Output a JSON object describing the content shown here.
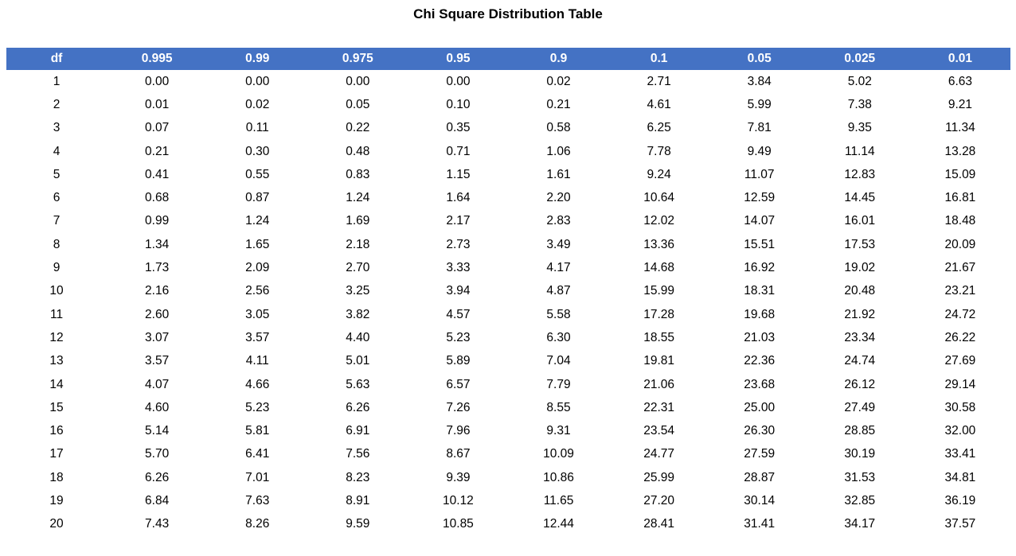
{
  "title": "Chi Square Distribution Table",
  "colors": {
    "header_bg": "#4472C4",
    "header_text": "#FFFFFF",
    "body_text": "#000000",
    "page_bg": "#FFFFFF"
  },
  "table": {
    "columns": [
      "df",
      "0.995",
      "0.99",
      "0.975",
      "0.95",
      "0.9",
      "0.1",
      "0.05",
      "0.025",
      "0.01"
    ],
    "rows": [
      [
        "1",
        "0.00",
        "0.00",
        "0.00",
        "0.00",
        "0.02",
        "2.71",
        "3.84",
        "5.02",
        "6.63"
      ],
      [
        "2",
        "0.01",
        "0.02",
        "0.05",
        "0.10",
        "0.21",
        "4.61",
        "5.99",
        "7.38",
        "9.21"
      ],
      [
        "3",
        "0.07",
        "0.11",
        "0.22",
        "0.35",
        "0.58",
        "6.25",
        "7.81",
        "9.35",
        "11.34"
      ],
      [
        "4",
        "0.21",
        "0.30",
        "0.48",
        "0.71",
        "1.06",
        "7.78",
        "9.49",
        "11.14",
        "13.28"
      ],
      [
        "5",
        "0.41",
        "0.55",
        "0.83",
        "1.15",
        "1.61",
        "9.24",
        "11.07",
        "12.83",
        "15.09"
      ],
      [
        "6",
        "0.68",
        "0.87",
        "1.24",
        "1.64",
        "2.20",
        "10.64",
        "12.59",
        "14.45",
        "16.81"
      ],
      [
        "7",
        "0.99",
        "1.24",
        "1.69",
        "2.17",
        "2.83",
        "12.02",
        "14.07",
        "16.01",
        "18.48"
      ],
      [
        "8",
        "1.34",
        "1.65",
        "2.18",
        "2.73",
        "3.49",
        "13.36",
        "15.51",
        "17.53",
        "20.09"
      ],
      [
        "9",
        "1.73",
        "2.09",
        "2.70",
        "3.33",
        "4.17",
        "14.68",
        "16.92",
        "19.02",
        "21.67"
      ],
      [
        "10",
        "2.16",
        "2.56",
        "3.25",
        "3.94",
        "4.87",
        "15.99",
        "18.31",
        "20.48",
        "23.21"
      ],
      [
        "11",
        "2.60",
        "3.05",
        "3.82",
        "4.57",
        "5.58",
        "17.28",
        "19.68",
        "21.92",
        "24.72"
      ],
      [
        "12",
        "3.07",
        "3.57",
        "4.40",
        "5.23",
        "6.30",
        "18.55",
        "21.03",
        "23.34",
        "26.22"
      ],
      [
        "13",
        "3.57",
        "4.11",
        "5.01",
        "5.89",
        "7.04",
        "19.81",
        "22.36",
        "24.74",
        "27.69"
      ],
      [
        "14",
        "4.07",
        "4.66",
        "5.63",
        "6.57",
        "7.79",
        "21.06",
        "23.68",
        "26.12",
        "29.14"
      ],
      [
        "15",
        "4.60",
        "5.23",
        "6.26",
        "7.26",
        "8.55",
        "22.31",
        "25.00",
        "27.49",
        "30.58"
      ],
      [
        "16",
        "5.14",
        "5.81",
        "6.91",
        "7.96",
        "9.31",
        "23.54",
        "26.30",
        "28.85",
        "32.00"
      ],
      [
        "17",
        "5.70",
        "6.41",
        "7.56",
        "8.67",
        "10.09",
        "24.77",
        "27.59",
        "30.19",
        "33.41"
      ],
      [
        "18",
        "6.26",
        "7.01",
        "8.23",
        "9.39",
        "10.86",
        "25.99",
        "28.87",
        "31.53",
        "34.81"
      ],
      [
        "19",
        "6.84",
        "7.63",
        "8.91",
        "10.12",
        "11.65",
        "27.20",
        "30.14",
        "32.85",
        "36.19"
      ],
      [
        "20",
        "7.43",
        "8.26",
        "9.59",
        "10.85",
        "12.44",
        "28.41",
        "31.41",
        "34.17",
        "37.57"
      ]
    ]
  },
  "chart_data": {
    "type": "table",
    "title": "Chi Square Distribution Table",
    "columns": [
      "df",
      "0.995",
      "0.99",
      "0.975",
      "0.95",
      "0.9",
      "0.1",
      "0.05",
      "0.025",
      "0.01"
    ],
    "rows": [
      [
        1,
        0.0,
        0.0,
        0.0,
        0.0,
        0.02,
        2.71,
        3.84,
        5.02,
        6.63
      ],
      [
        2,
        0.01,
        0.02,
        0.05,
        0.1,
        0.21,
        4.61,
        5.99,
        7.38,
        9.21
      ],
      [
        3,
        0.07,
        0.11,
        0.22,
        0.35,
        0.58,
        6.25,
        7.81,
        9.35,
        11.34
      ],
      [
        4,
        0.21,
        0.3,
        0.48,
        0.71,
        1.06,
        7.78,
        9.49,
        11.14,
        13.28
      ],
      [
        5,
        0.41,
        0.55,
        0.83,
        1.15,
        1.61,
        9.24,
        11.07,
        12.83,
        15.09
      ],
      [
        6,
        0.68,
        0.87,
        1.24,
        1.64,
        2.2,
        10.64,
        12.59,
        14.45,
        16.81
      ],
      [
        7,
        0.99,
        1.24,
        1.69,
        2.17,
        2.83,
        12.02,
        14.07,
        16.01,
        18.48
      ],
      [
        8,
        1.34,
        1.65,
        2.18,
        2.73,
        3.49,
        13.36,
        15.51,
        17.53,
        20.09
      ],
      [
        9,
        1.73,
        2.09,
        2.7,
        3.33,
        4.17,
        14.68,
        16.92,
        19.02,
        21.67
      ],
      [
        10,
        2.16,
        2.56,
        3.25,
        3.94,
        4.87,
        15.99,
        18.31,
        20.48,
        23.21
      ],
      [
        11,
        2.6,
        3.05,
        3.82,
        4.57,
        5.58,
        17.28,
        19.68,
        21.92,
        24.72
      ],
      [
        12,
        3.07,
        3.57,
        4.4,
        5.23,
        6.3,
        18.55,
        21.03,
        23.34,
        26.22
      ],
      [
        13,
        3.57,
        4.11,
        5.01,
        5.89,
        7.04,
        19.81,
        22.36,
        24.74,
        27.69
      ],
      [
        14,
        4.07,
        4.66,
        5.63,
        6.57,
        7.79,
        21.06,
        23.68,
        26.12,
        29.14
      ],
      [
        15,
        4.6,
        5.23,
        6.26,
        7.26,
        8.55,
        22.31,
        25.0,
        27.49,
        30.58
      ],
      [
        16,
        5.14,
        5.81,
        6.91,
        7.96,
        9.31,
        23.54,
        26.3,
        28.85,
        32.0
      ],
      [
        17,
        5.7,
        6.41,
        7.56,
        8.67,
        10.09,
        24.77,
        27.59,
        30.19,
        33.41
      ],
      [
        18,
        6.26,
        7.01,
        8.23,
        9.39,
        10.86,
        25.99,
        28.87,
        31.53,
        34.81
      ],
      [
        19,
        6.84,
        7.63,
        8.91,
        10.12,
        11.65,
        27.2,
        30.14,
        32.85,
        36.19
      ],
      [
        20,
        7.43,
        8.26,
        9.59,
        10.85,
        12.44,
        28.41,
        31.41,
        34.17,
        37.57
      ]
    ]
  }
}
